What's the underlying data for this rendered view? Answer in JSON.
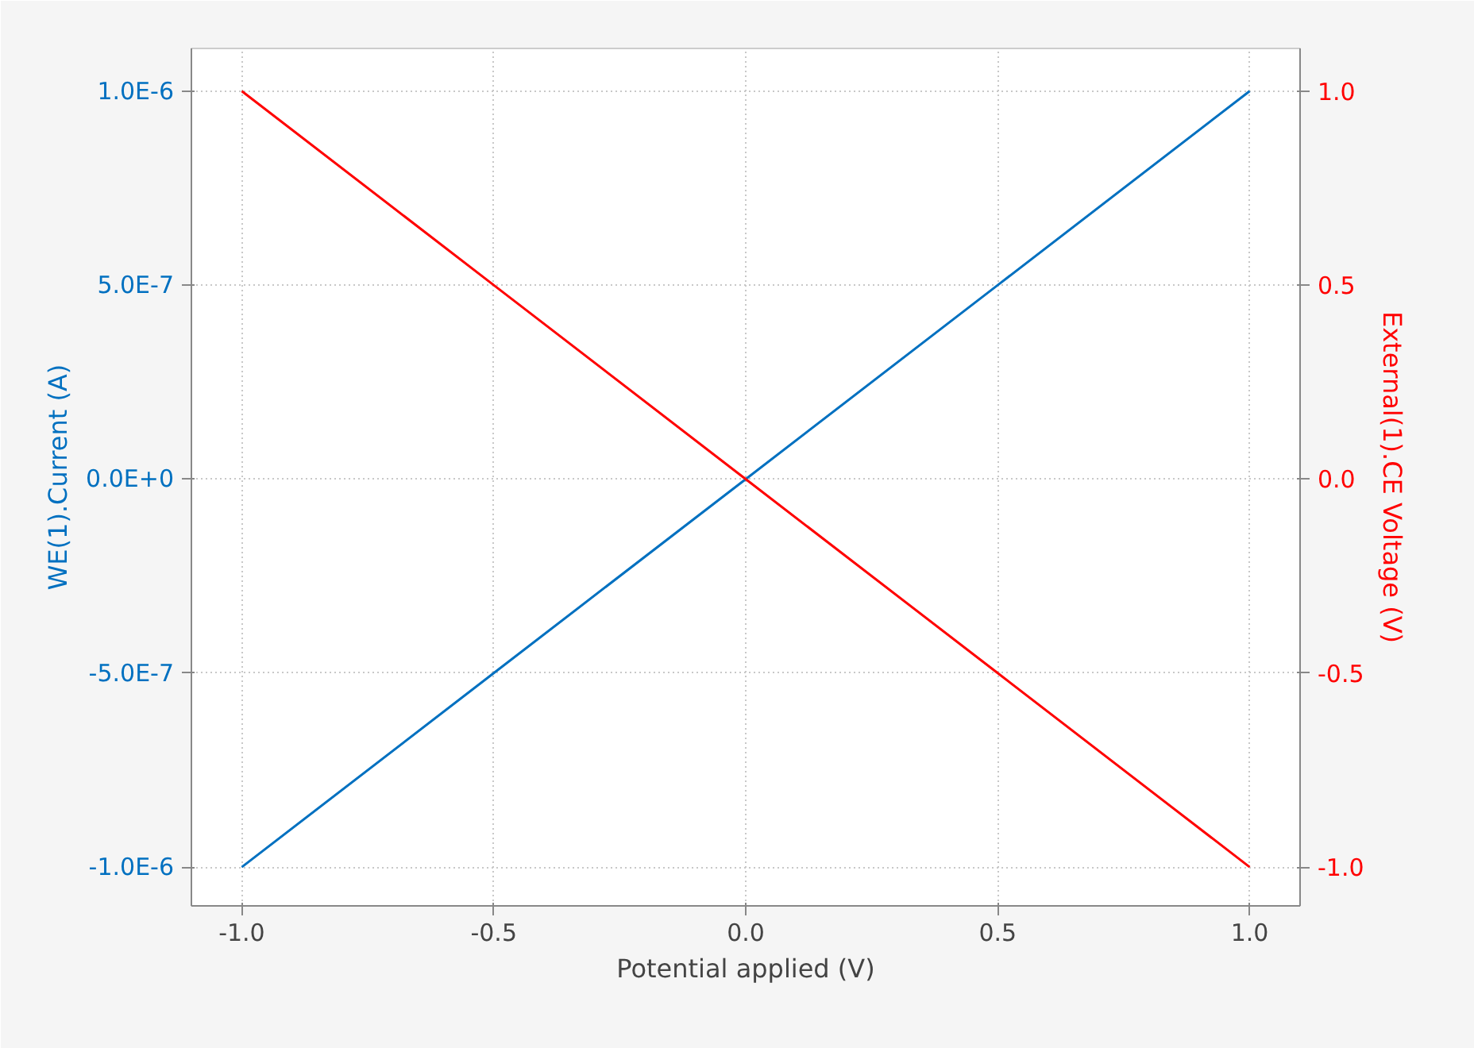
{
  "chart_data": {
    "type": "line",
    "xlabel": "Potential applied (V)",
    "ylabel": "WE(1).Current (A)",
    "y2label": "External(1).CE Voltage (V)",
    "xlim": [
      -1.1,
      1.1
    ],
    "xticks": [
      {
        "value": -1.0,
        "label": "-1.0"
      },
      {
        "value": -0.5,
        "label": "-0.5"
      },
      {
        "value": 0.0,
        "label": "0.0"
      },
      {
        "value": 0.5,
        "label": "0.5"
      },
      {
        "value": 1.0,
        "label": "1.0"
      }
    ],
    "ylim": [
      -1.1e-06,
      1.11e-06
    ],
    "yticks": [
      {
        "value": -1e-06,
        "label": "-1.0E-6"
      },
      {
        "value": -5e-07,
        "label": "-5.0E-7"
      },
      {
        "value": 0,
        "label": "0.0E+0"
      },
      {
        "value": 5e-07,
        "label": "5.0E-7"
      },
      {
        "value": 1e-06,
        "label": "1.0E-6"
      }
    ],
    "y2lim": [
      -1.1,
      1.11
    ],
    "y2ticks": [
      {
        "value": -1.0,
        "label": "-1.0"
      },
      {
        "value": -0.5,
        "label": "-0.5"
      },
      {
        "value": 0.0,
        "label": "0.0"
      },
      {
        "value": 0.5,
        "label": "0.5"
      },
      {
        "value": 1.0,
        "label": "1.0"
      }
    ],
    "grid": true,
    "marker": "none",
    "line_style": "solid",
    "series": [
      {
        "color": "#0070c0",
        "x": [
          -1.0,
          -0.5,
          0.0,
          0.5,
          1.0
        ],
        "values": [
          -1e-06,
          -5e-07,
          0,
          5e-07,
          1e-06
        ]
      },
      {
        "color": "#ff0000",
        "x": [
          -1.0,
          -0.5,
          0.0,
          0.5,
          1.0
        ],
        "values": [
          1.0,
          0.5,
          0.0,
          -0.5,
          -1.0
        ],
        "axis": "y2"
      }
    ]
  }
}
